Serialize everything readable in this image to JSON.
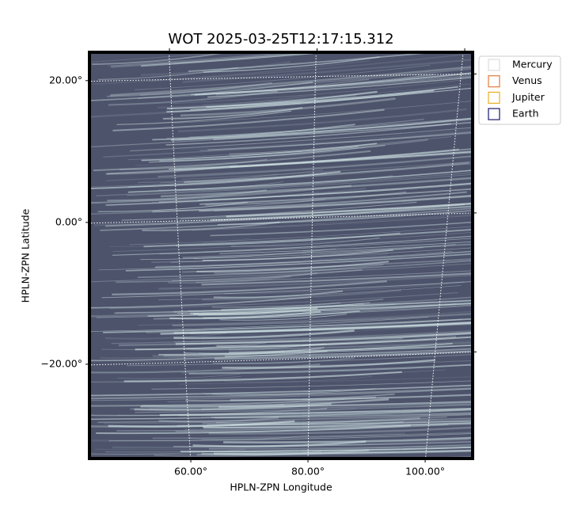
{
  "chart_data": {
    "type": "image",
    "title": "WOT 2025-03-25T12:17:15.312",
    "xlabel": "HPLN-ZPN Longitude",
    "ylabel": "HPLN-ZPN Latitude",
    "xlim": [
      42.7,
      108.1
    ],
    "ylim": [
      -33.3,
      24.0
    ],
    "xticks": [
      {
        "value": 60,
        "label": "60.00°"
      },
      {
        "value": 80,
        "label": "80.00°"
      },
      {
        "value": 100,
        "label": "100.00°"
      }
    ],
    "yticks": [
      {
        "value": 20,
        "label": "20.00°"
      },
      {
        "value": 0,
        "label": "0.00°"
      },
      {
        "value": -20,
        "label": "−20.00°"
      }
    ],
    "grid": true,
    "legend_position": "upper right outside",
    "series": [
      {
        "name": "Mercury",
        "color": "#dddddd"
      },
      {
        "name": "Venus",
        "color": "#e07b39"
      },
      {
        "name": "Jupiter",
        "color": "#e8b020"
      },
      {
        "name": "Earth",
        "color": "#1a1a6e"
      }
    ]
  }
}
